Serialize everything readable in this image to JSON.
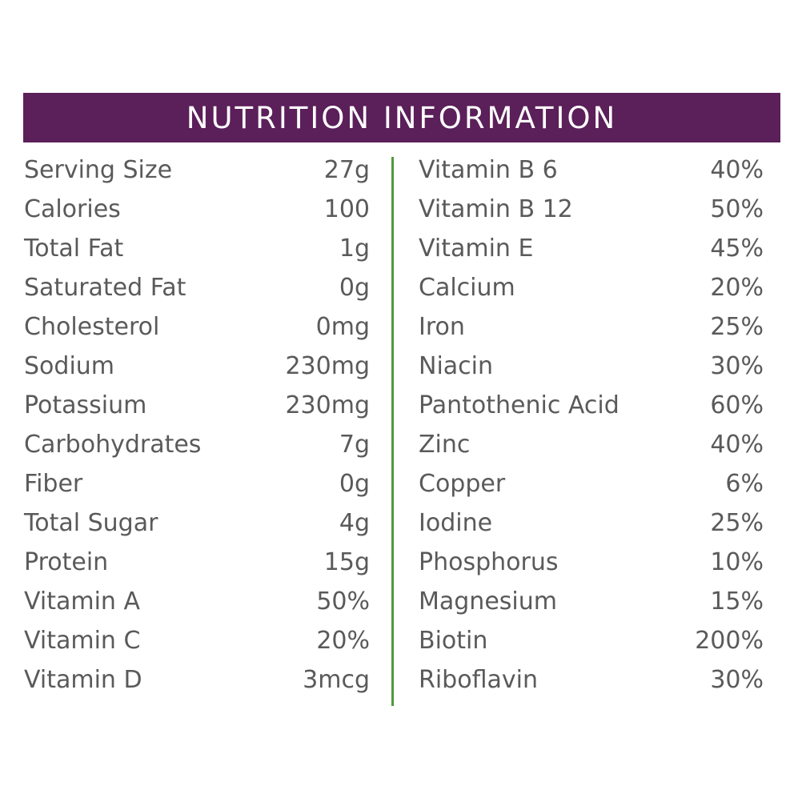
{
  "title": "NUTRITION INFORMATION",
  "colors": {
    "header_background": "#5b1f5a",
    "header_text": "#ffffff",
    "divider": "#4f9a3e",
    "body_text": "#5a5a5a"
  },
  "left_column": [
    {
      "label": "Serving Size",
      "value": "27g"
    },
    {
      "label": "Calories",
      "value": "100"
    },
    {
      "label": "Total Fat",
      "value": "1g"
    },
    {
      "label": "Saturated Fat",
      "value": "0g"
    },
    {
      "label": "Cholesterol",
      "value": "0mg"
    },
    {
      "label": "Sodium",
      "value": "230mg"
    },
    {
      "label": "Potassium",
      "value": "230mg"
    },
    {
      "label": "Carbohydrates",
      "value": "7g"
    },
    {
      "label": "Fiber",
      "value": "0g"
    },
    {
      "label": "Total Sugar",
      "value": "4g"
    },
    {
      "label": "Protein",
      "value": "15g"
    },
    {
      "label": "Vitamin A",
      "value": "50%"
    },
    {
      "label": "Vitamin C",
      "value": "20%"
    },
    {
      "label": "Vitamin D",
      "value": "3mcg"
    }
  ],
  "right_column": [
    {
      "label": "Vitamin B 6",
      "value": "40%"
    },
    {
      "label": "Vitamin B 12",
      "value": "50%"
    },
    {
      "label": "Vitamin E",
      "value": "45%"
    },
    {
      "label": "Calcium",
      "value": "20%"
    },
    {
      "label": "Iron",
      "value": "25%"
    },
    {
      "label": "Niacin",
      "value": "30%"
    },
    {
      "label": "Pantothenic Acid",
      "value": "60%"
    },
    {
      "label": "Zinc",
      "value": "40%"
    },
    {
      "label": "Copper",
      "value": "6%"
    },
    {
      "label": "Iodine",
      "value": "25%"
    },
    {
      "label": "Phosphorus",
      "value": "10%"
    },
    {
      "label": "Magnesium",
      "value": "15%"
    },
    {
      "label": "Biotin",
      "value": "200%"
    },
    {
      "label": "Riboflavin",
      "value": "30%"
    }
  ]
}
